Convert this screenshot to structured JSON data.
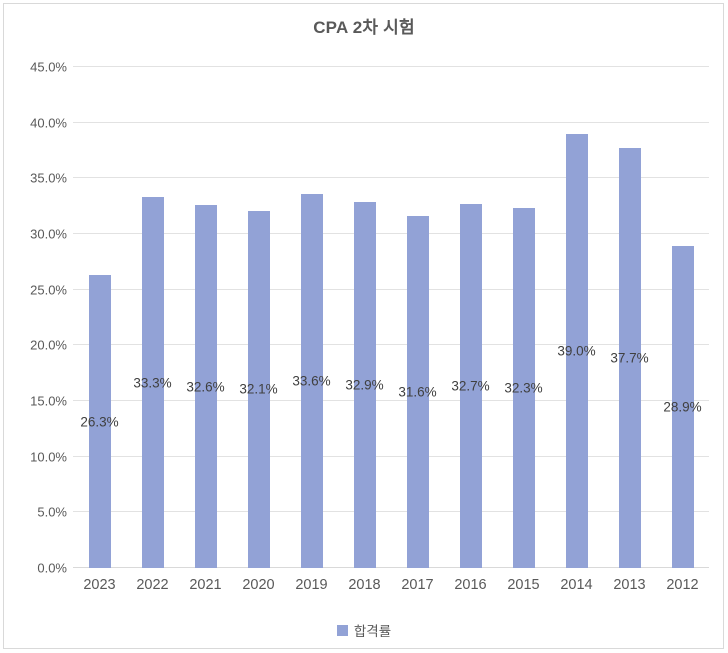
{
  "title": "CPA 2차 시험",
  "legend": {
    "label": "합격률"
  },
  "colors": {
    "bar": "#92a2d6",
    "grid": "#e2e2e2",
    "axis_line": "#d9d9d9",
    "axis_text": "#595959",
    "data_label_text": "#404040",
    "frame_border": "#d9d9d9",
    "background": "#ffffff"
  },
  "chart_data": {
    "type": "bar",
    "title": "CPA 2차 시험",
    "categories": [
      "2023",
      "2022",
      "2021",
      "2020",
      "2019",
      "2018",
      "2017",
      "2016",
      "2015",
      "2014",
      "2013",
      "2012"
    ],
    "series": [
      {
        "name": "합격률",
        "values": [
          26.3,
          33.3,
          32.6,
          32.1,
          33.6,
          32.9,
          31.6,
          32.7,
          32.3,
          39.0,
          37.7,
          28.9
        ]
      }
    ],
    "value_labels": [
      "26.3%",
      "33.3%",
      "32.6%",
      "32.1%",
      "33.6%",
      "32.9%",
      "31.6%",
      "32.7%",
      "32.3%",
      "39.0%",
      "37.7%",
      "28.9%"
    ],
    "xlabel": "",
    "ylabel": "",
    "ylim": [
      0,
      45
    ],
    "ytick_step": 5,
    "ytick_labels": [
      "0.0%",
      "5.0%",
      "10.0%",
      "15.0%",
      "20.0%",
      "25.0%",
      "30.0%",
      "35.0%",
      "40.0%",
      "45.0%"
    ],
    "grid": true,
    "data_label_position": "center",
    "legend_position": "bottom"
  }
}
